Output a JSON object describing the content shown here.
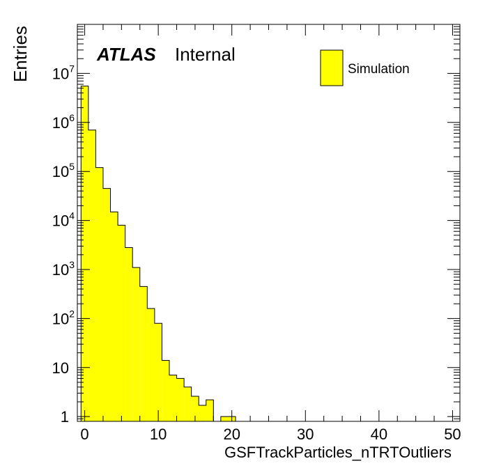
{
  "chart_data": {
    "type": "bar",
    "style": "histogram",
    "title": "",
    "xlabel": "GSFTrackParticles_nTRTOutliers",
    "ylabel": "Entries",
    "xlim": [
      -1,
      51
    ],
    "ylim": [
      0.8,
      100000000
    ],
    "yscale": "log",
    "grid": false,
    "fill_color": "#ffff00",
    "line_color": "#000000",
    "x_ticks": [
      0,
      10,
      20,
      30,
      40,
      50
    ],
    "y_ticks": [
      {
        "value": 1,
        "base": "1",
        "exp": ""
      },
      {
        "value": 10,
        "base": "10",
        "exp": ""
      },
      {
        "value": 100,
        "base": "10",
        "exp": "2"
      },
      {
        "value": 1000,
        "base": "10",
        "exp": "3"
      },
      {
        "value": 10000,
        "base": "10",
        "exp": "4"
      },
      {
        "value": 100000,
        "base": "10",
        "exp": "5"
      },
      {
        "value": 1000000,
        "base": "10",
        "exp": "6"
      },
      {
        "value": 10000000,
        "base": "10",
        "exp": "7"
      }
    ],
    "bin_width": 1,
    "bin_start": -0.5,
    "series": [
      {
        "name": "Simulation",
        "values": [
          5500000,
          700000,
          120000,
          45000,
          15000,
          8000,
          2800,
          1100,
          450,
          160,
          80,
          14,
          7,
          6,
          4,
          2.6,
          1.7,
          2.2,
          0.6,
          1,
          1,
          0.4,
          0.7,
          0.45,
          0.6,
          0.45,
          0.7,
          0.6,
          0.6,
          0.6,
          0.6,
          0.6,
          0.4,
          0.5,
          0.6,
          0.6,
          0.4,
          0.5,
          0.6,
          0.6,
          0.4,
          0.6
        ]
      }
    ],
    "legend": {
      "position": "top-right",
      "entries": [
        "Simulation"
      ]
    },
    "annotations": {
      "experiment": "ATLAS",
      "status": "Internal"
    }
  }
}
